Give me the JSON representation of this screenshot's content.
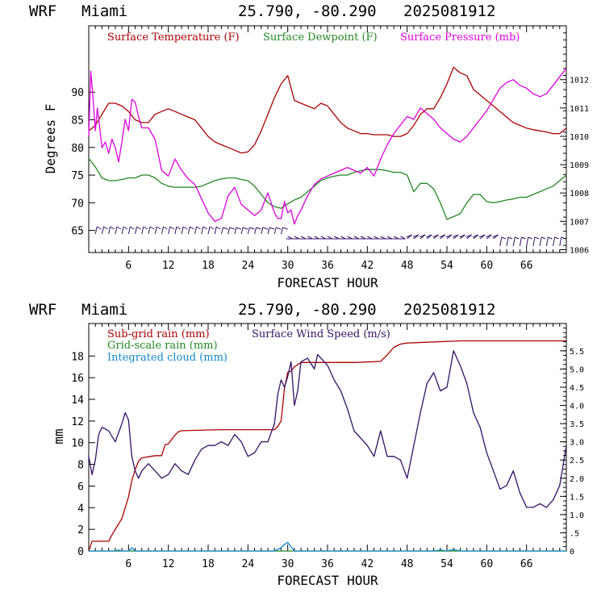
{
  "chart_data": [
    {
      "type": "line",
      "header": {
        "model": "WRF",
        "location": "Miami",
        "coords": "25.790, -80.290",
        "init": "2025081912"
      },
      "xlabel": "FORECAST HOUR",
      "ylabel": "Degrees F",
      "xlim": [
        0,
        72
      ],
      "ylim_left": [
        61,
        102
      ],
      "ylim_right": [
        1005.9,
        1013.9
      ],
      "x_ticks": [
        6,
        12,
        18,
        24,
        30,
        36,
        42,
        48,
        54,
        60,
        66
      ],
      "x_tick_labels": [
        "6",
        "12",
        "18",
        "24",
        "30",
        "36",
        "42",
        "48",
        "54",
        "60",
        "66"
      ],
      "y_ticks_left": [
        65,
        70,
        75,
        80,
        85,
        90
      ],
      "y_tick_labels_left": [
        "65",
        "70",
        "75",
        "80",
        "85",
        "90"
      ],
      "y_ticks_right": [
        1006,
        1007,
        1008,
        1009,
        1010,
        1011,
        1012
      ],
      "y_tick_labels_right": [
        "1006",
        "1007",
        "1008",
        "1009",
        "1010",
        "1011",
        "1012"
      ],
      "legend": [
        "Surface Temperature (F)",
        "Surface Dewpoint (F)",
        "Surface Pressure (mb)"
      ],
      "colors": {
        "temperature": "#aa0000",
        "dewpoint": "#228822",
        "pressure": "#dd00dd",
        "wind_barbs": "#331166"
      },
      "series": [
        {
          "name": "Surface Temperature (F)",
          "axis": "left",
          "color": "#aa0000",
          "x": [
            0,
            1,
            2,
            3,
            4,
            5,
            6,
            7,
            8,
            9,
            10,
            11,
            12,
            13,
            14,
            15,
            16,
            17,
            18,
            19,
            20,
            21,
            22,
            23,
            24,
            25,
            26,
            27,
            28,
            29,
            30,
            31,
            32,
            33,
            34,
            35,
            36,
            37,
            38,
            39,
            40,
            41,
            42,
            43,
            44,
            45,
            46,
            47,
            48,
            49,
            50,
            51,
            52,
            53,
            54,
            55,
            56,
            57,
            58,
            59,
            60,
            61,
            62,
            63,
            64,
            65,
            66,
            67,
            68,
            69,
            70,
            71,
            72
          ],
          "values": [
            83,
            84,
            86,
            88,
            88,
            87.5,
            86.5,
            85,
            84.5,
            84.5,
            86,
            86.5,
            87,
            86.5,
            86,
            85.5,
            85,
            83.5,
            82,
            81,
            80.5,
            80,
            79.5,
            79,
            79.2,
            80.5,
            83,
            86,
            89,
            91.5,
            93,
            88.5,
            88,
            87.5,
            87,
            88,
            87.5,
            86,
            84.5,
            83.5,
            83,
            82.5,
            82.5,
            82.3,
            82.3,
            82.3,
            82,
            82,
            82.5,
            84,
            86,
            87,
            87,
            89,
            91.5,
            94.5,
            93.5,
            93,
            90.5,
            89.5,
            88.5,
            87.5,
            86.5,
            85.5,
            84.5,
            84,
            83.5,
            83.2,
            83,
            82.8,
            82.5,
            82.5,
            83.5
          ]
        },
        {
          "name": "Surface Dewpoint (F)",
          "axis": "left",
          "color": "#228822",
          "x": [
            0,
            1,
            2,
            3,
            4,
            5,
            6,
            7,
            8,
            9,
            10,
            11,
            12,
            13,
            14,
            15,
            16,
            17,
            18,
            19,
            20,
            21,
            22,
            23,
            24,
            25,
            26,
            27,
            28,
            29,
            30,
            31,
            32,
            33,
            34,
            35,
            36,
            37,
            38,
            39,
            40,
            41,
            42,
            43,
            44,
            45,
            46,
            47,
            48,
            49,
            50,
            51,
            52,
            53,
            54,
            55,
            56,
            57,
            58,
            59,
            60,
            61,
            62,
            63,
            64,
            65,
            66,
            67,
            68,
            69,
            70,
            71,
            72
          ],
          "values": [
            78,
            76.5,
            74.5,
            74,
            74,
            74.2,
            74.5,
            74.5,
            75,
            75,
            74.5,
            73.5,
            73,
            72.8,
            72.8,
            72.8,
            72.8,
            73,
            73.5,
            74,
            74.3,
            74.5,
            74.5,
            74.2,
            74,
            73,
            71.5,
            70,
            69.3,
            69,
            69.8,
            70.5,
            71,
            72,
            73,
            74,
            74.5,
            74.8,
            75,
            75,
            75.5,
            75.8,
            76,
            76,
            76,
            75.8,
            75.5,
            75.5,
            75,
            72,
            73.5,
            73.5,
            72.5,
            70,
            67,
            67.5,
            68,
            70,
            71.5,
            71.5,
            70.2,
            70,
            70.2,
            70.5,
            70.7,
            71,
            71,
            71.5,
            72,
            72.5,
            73,
            74,
            75
          ]
        },
        {
          "name": "Surface Pressure (mb)",
          "axis": "right",
          "color": "#dd00dd",
          "x": [
            0,
            0.3,
            0.6,
            1,
            1.3,
            1.6,
            2,
            2.5,
            3,
            3.5,
            4,
            4.5,
            5,
            5.5,
            6,
            6.5,
            7,
            7.5,
            8,
            9,
            10,
            11,
            12,
            13,
            14,
            15,
            16,
            17,
            18,
            19,
            20,
            21,
            22,
            23,
            24,
            25,
            26,
            27,
            28,
            28.5,
            29,
            29.5,
            30,
            30.5,
            31,
            31.5,
            32,
            33,
            34,
            35,
            36,
            37,
            38,
            39,
            40,
            41,
            42,
            43,
            44,
            45,
            46,
            47,
            48,
            49,
            50,
            51,
            52,
            53,
            54,
            55,
            56,
            57,
            58,
            59,
            60,
            61,
            62,
            63,
            64,
            65,
            66,
            67,
            68,
            69,
            70,
            71,
            72
          ],
          "values": [
            1010,
            1012.3,
            1011.5,
            1010.2,
            1011,
            1010.4,
            1009.6,
            1009.8,
            1009.4,
            1009.9,
            1009.6,
            1009.1,
            1009.8,
            1010.6,
            1010.2,
            1011.3,
            1011.2,
            1010.7,
            1010.3,
            1010.3,
            1009.9,
            1008.8,
            1008.6,
            1009.2,
            1008.8,
            1008.5,
            1008.3,
            1007.8,
            1007.3,
            1007,
            1007.1,
            1007.9,
            1008.2,
            1007.6,
            1007.4,
            1007.2,
            1007.4,
            1008,
            1007.3,
            1007.1,
            1007.1,
            1007.7,
            1007.3,
            1007.4,
            1006.9,
            1007.2,
            1007.4,
            1007.9,
            1008.3,
            1008.5,
            1008.6,
            1008.7,
            1008.8,
            1008.9,
            1008.8,
            1008.7,
            1008.9,
            1008.6,
            1009.2,
            1009.7,
            1010.1,
            1010.4,
            1010.7,
            1010.6,
            1011,
            1010.8,
            1010.6,
            1010.3,
            1010.1,
            1009.9,
            1009.8,
            1010,
            1010.3,
            1010.6,
            1010.9,
            1011.3,
            1011.7,
            1011.9,
            1012,
            1011.8,
            1011.7,
            1011.5,
            1011.4,
            1011.5,
            1011.8,
            1012.1,
            1012.4
          ]
        }
      ],
      "wind_barbs": {
        "hours": [
          1,
          2,
          3,
          4,
          5,
          6,
          7,
          8,
          9,
          10,
          11,
          12,
          13,
          14,
          15,
          16,
          17,
          18,
          19,
          20,
          21,
          22,
          23,
          24,
          25,
          26,
          27,
          28,
          29,
          30,
          31,
          32,
          33,
          34,
          35,
          36,
          37,
          38,
          39,
          40,
          41,
          42,
          43,
          44,
          45,
          46,
          47,
          48,
          49,
          50,
          51,
          52,
          53,
          54,
          55,
          56,
          57,
          58,
          59,
          60,
          61,
          62,
          63,
          64,
          65,
          66,
          67,
          68,
          69,
          70,
          71
        ]
      }
    },
    {
      "type": "line",
      "header": {
        "model": "WRF",
        "location": "Miami",
        "coords": "25.790, -80.290",
        "init": "2025081912"
      },
      "xlabel": "FORECAST HOUR",
      "ylabel": "mm",
      "xlim": [
        0,
        72
      ],
      "ylim_left": [
        0,
        21
      ],
      "ylim_right": [
        0,
        6.25
      ],
      "x_ticks": [
        6,
        12,
        18,
        24,
        30,
        36,
        42,
        48,
        54,
        60,
        66
      ],
      "x_tick_labels": [
        "6",
        "12",
        "18",
        "24",
        "30",
        "36",
        "42",
        "48",
        "54",
        "60",
        "66"
      ],
      "y_ticks_left": [
        0,
        2,
        4,
        6,
        8,
        10,
        12,
        14,
        16,
        18
      ],
      "y_tick_labels_left": [
        "0",
        "2",
        "4",
        "6",
        "8",
        "10",
        "12",
        "14",
        "16",
        "18"
      ],
      "y_ticks_right": [
        0,
        0.5,
        1.0,
        1.5,
        2.0,
        2.5,
        3.0,
        3.5,
        4.0,
        4.5,
        5.0,
        5.5
      ],
      "y_tick_labels_right": [
        "0",
        ".5",
        "1.0",
        "1.5",
        "2.0",
        "2.5",
        "3.0",
        "3.5",
        "4.0",
        "4.5",
        "5.0",
        "5.5"
      ],
      "legend": [
        "Sub-grid rain (mm)",
        "Surface Wind Speed (m/s)",
        "Grid-scale rain (mm)",
        "Integrated cloud (mm)"
      ],
      "colors": {
        "subgrid": "#aa0000",
        "wind": "#331166",
        "gridscale": "#228822",
        "cloud": "#1188cc"
      },
      "series": [
        {
          "name": "Sub-grid rain (mm)",
          "axis": "left",
          "color": "#aa0000",
          "x": [
            0,
            0.5,
            1,
            2,
            3,
            3.5,
            4,
            4.5,
            5,
            5.5,
            6,
            6.5,
            7,
            7.5,
            8,
            9,
            10,
            11,
            11.5,
            12,
            12.5,
            13,
            13.5,
            14,
            20,
            26,
            28,
            28.5,
            29,
            29.5,
            30,
            30.5,
            31,
            32,
            33,
            34,
            40,
            44,
            45,
            46,
            47,
            48,
            56,
            72
          ],
          "values": [
            0,
            0.9,
            0.9,
            0.9,
            0.9,
            1.5,
            2,
            2.5,
            3,
            4,
            5,
            6.5,
            7.5,
            8.3,
            8.6,
            8.7,
            8.8,
            8.8,
            9.8,
            9.9,
            10.3,
            10.7,
            11,
            11.1,
            11.2,
            11.2,
            11.2,
            11.5,
            12,
            15,
            16.5,
            16.6,
            17,
            17.4,
            17.4,
            17.4,
            17.4,
            17.5,
            18.1,
            18.8,
            19.1,
            19.2,
            19.4,
            19.4
          ]
        },
        {
          "name": "Surface Wind Speed (m/s)",
          "axis": "right",
          "color": "#331166",
          "x": [
            0,
            0.5,
            1,
            1.5,
            2,
            3,
            4,
            5,
            5.5,
            6,
            6.5,
            7,
            7.5,
            8,
            9,
            10,
            11,
            12,
            13,
            14,
            15,
            16,
            17,
            18,
            19,
            20,
            21,
            22,
            23,
            24,
            25,
            26,
            27,
            28,
            28.5,
            29,
            29.5,
            30,
            30.5,
            31,
            31.5,
            32,
            33,
            34,
            34.5,
            35,
            36,
            37,
            38,
            39,
            40,
            41,
            42,
            43,
            44,
            45,
            46,
            47,
            48,
            49,
            50,
            51,
            52,
            53,
            54,
            55,
            55.5,
            56,
            57,
            58,
            59,
            60,
            61,
            62,
            63,
            64,
            65,
            66,
            67,
            68,
            69,
            70,
            71,
            72
          ],
          "values": [
            2.6,
            2.1,
            2.5,
            3.2,
            3.4,
            3.3,
            3.0,
            3.5,
            3.8,
            3.6,
            2.6,
            2.2,
            2.0,
            2.2,
            2.4,
            2.2,
            2.0,
            2.1,
            2.4,
            2.2,
            2.1,
            2.5,
            2.8,
            2.9,
            2.9,
            3.0,
            2.9,
            3.2,
            3.0,
            2.6,
            2.7,
            3.0,
            3.0,
            3.5,
            4.3,
            4.7,
            4.5,
            4.8,
            5.2,
            4.0,
            4.4,
            5.2,
            5.3,
            5.0,
            5.4,
            5.3,
            5.1,
            4.7,
            4.4,
            3.9,
            3.3,
            3.1,
            2.9,
            2.6,
            3.3,
            2.6,
            2.6,
            2.5,
            2.0,
            2.9,
            3.8,
            4.6,
            4.9,
            4.4,
            4.5,
            5.5,
            5.3,
            5.1,
            4.6,
            3.8,
            3.4,
            2.7,
            2.2,
            1.7,
            1.8,
            2.2,
            1.6,
            1.2,
            1.2,
            1.3,
            1.2,
            1.4,
            1.8,
            2.9
          ]
        },
        {
          "name": "Grid-scale rain (mm)",
          "axis": "left",
          "color": "#228822",
          "x": [
            0,
            72
          ],
          "values": [
            0,
            0
          ]
        },
        {
          "name": "Integrated cloud (mm)",
          "axis": "left",
          "color": "#1188cc",
          "x": [
            0,
            4,
            4.5,
            5,
            6,
            6.5,
            7,
            8,
            10,
            28,
            29,
            29.5,
            30,
            30.5,
            31,
            32,
            40,
            52,
            53,
            54,
            55,
            56,
            72
          ],
          "values": [
            0,
            0,
            0.1,
            0,
            0,
            0.3,
            0,
            0,
            0,
            0,
            0.3,
            0.6,
            0.8,
            0.4,
            0,
            0,
            0,
            0,
            0.1,
            0,
            0.15,
            0,
            0
          ]
        }
      ]
    }
  ]
}
